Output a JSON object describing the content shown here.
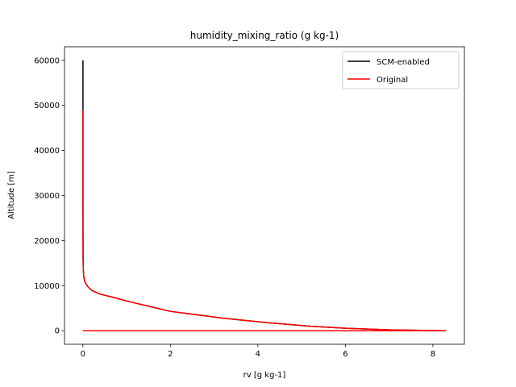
{
  "chart_data": {
    "type": "line",
    "title": "humidity_mixing_ratio (g kg-1)",
    "xlabel": "rv [g kg-1]",
    "ylabel": "Altitude [m]",
    "xlim": [
      -0.42,
      8.72
    ],
    "ylim": [
      -3000,
      63000
    ],
    "xticks": [
      0,
      2,
      4,
      6,
      8
    ],
    "yticks": [
      0,
      10000,
      20000,
      30000,
      40000,
      50000,
      60000
    ],
    "legend_position": "top-right",
    "series": [
      {
        "name": "SCM-enabled",
        "color": "#000000",
        "points": [
          [
            8.3,
            0
          ],
          [
            8.0,
            50
          ],
          [
            7.0,
            200
          ],
          [
            6.0,
            550
          ],
          [
            5.2,
            1000
          ],
          [
            4.2,
            1800
          ],
          [
            3.2,
            2800
          ],
          [
            2.0,
            4300
          ],
          [
            1.0,
            6600
          ],
          [
            0.7,
            7400
          ],
          [
            0.4,
            8100
          ],
          [
            0.3,
            8500
          ],
          [
            0.2,
            9000
          ],
          [
            0.12,
            9700
          ],
          [
            0.07,
            10400
          ],
          [
            0.04,
            11000
          ],
          [
            0.02,
            12000
          ],
          [
            0.01,
            13500
          ],
          [
            0.005,
            16000
          ],
          [
            0.003,
            22000
          ],
          [
            0.002,
            30000
          ],
          [
            0.002,
            40000
          ],
          [
            0.002,
            50000
          ],
          [
            0.002,
            60000
          ]
        ]
      },
      {
        "name": "Original",
        "color": "#ff0000",
        "points": [
          [
            8.3,
            0
          ],
          [
            8.0,
            50
          ],
          [
            7.0,
            200
          ],
          [
            6.0,
            550
          ],
          [
            5.2,
            1000
          ],
          [
            4.2,
            1800
          ],
          [
            3.2,
            2800
          ],
          [
            2.0,
            4300
          ],
          [
            1.0,
            6600
          ],
          [
            0.7,
            7400
          ],
          [
            0.4,
            8100
          ],
          [
            0.3,
            8500
          ],
          [
            0.2,
            9000
          ],
          [
            0.12,
            9700
          ],
          [
            0.07,
            10400
          ],
          [
            0.04,
            11000
          ],
          [
            0.02,
            12000
          ],
          [
            0.01,
            13500
          ],
          [
            0.005,
            16000
          ],
          [
            0.003,
            22000
          ],
          [
            0.002,
            30000
          ],
          [
            0.002,
            40000
          ],
          [
            0.002,
            49000
          ]
        ],
        "extra_segment": [
          [
            0,
            0
          ],
          [
            8.3,
            0
          ]
        ]
      }
    ]
  }
}
